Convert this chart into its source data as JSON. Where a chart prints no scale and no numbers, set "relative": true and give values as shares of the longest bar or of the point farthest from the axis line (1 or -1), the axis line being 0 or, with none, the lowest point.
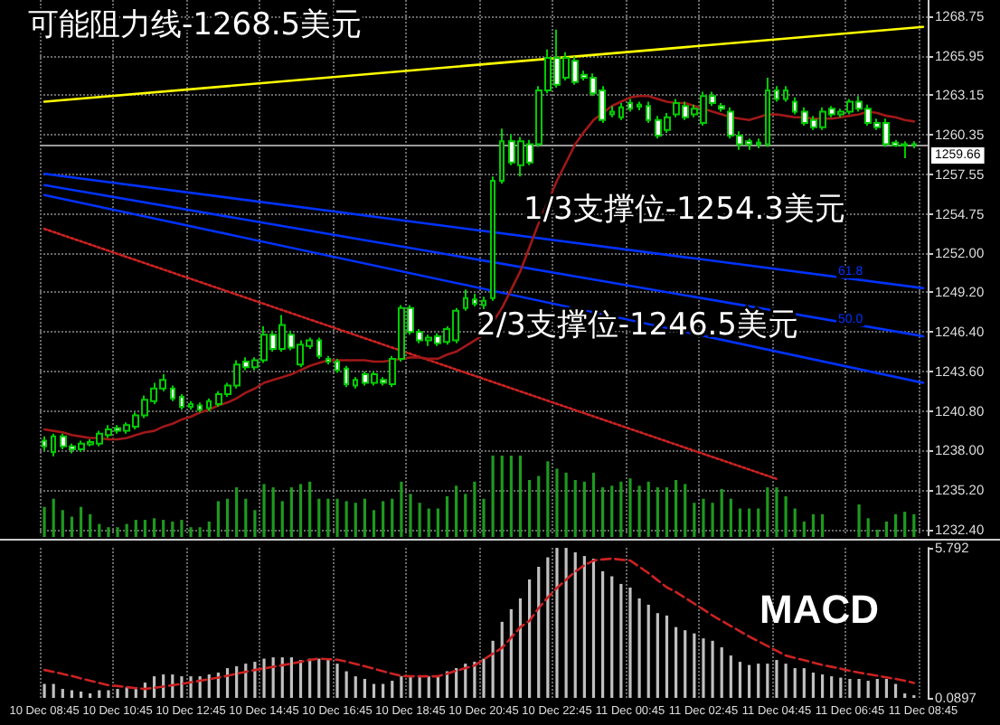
{
  "chart_data": [
    {
      "type": "candlestick",
      "color": "#00cc00",
      "marker": "none",
      "grid": true,
      "tick_labels": "y",
      "annotations": [
        "可能阻力线-1268.5美元",
        "1/3支撑位-1254.3美元",
        "2/3支撑位-1246.5美元"
      ],
      "categories": [
        "10 Dec 08:45",
        null,
        null,
        null,
        null,
        null,
        null,
        null,
        "10 Dec 10:45",
        null,
        null,
        null,
        null,
        null,
        null,
        null,
        "10 Dec 12:45",
        null,
        null,
        null,
        null,
        null,
        null,
        null,
        "10 Dec 14:45",
        null,
        null,
        null,
        null,
        null,
        null,
        null,
        "10 Dec 16:45",
        null,
        null,
        null,
        null,
        null,
        null,
        null,
        "10 Dec 18:45",
        null,
        null,
        null,
        null,
        null,
        null,
        null,
        "10 Dec 20:45",
        null,
        null,
        null,
        null,
        null,
        null,
        null,
        "10 Dec 22:45",
        null,
        null,
        null,
        null,
        null,
        null,
        null,
        "11 Dec 00:45",
        null,
        null,
        null,
        null,
        null,
        null,
        null,
        "11 Dec 02:45",
        null,
        null,
        null,
        null,
        null,
        null,
        null,
        "11 Dec 04:45",
        null,
        null,
        null,
        null,
        null,
        null,
        null,
        "11 Dec 06:45",
        null,
        null,
        null,
        null,
        null,
        null,
        null,
        "11 Dec 08:45"
      ],
      "ohlc": [
        [
          1238.7,
          1239.0,
          1238.0,
          1238.3
        ],
        [
          1237.9,
          1239.2,
          1237.6,
          1239.0
        ],
        [
          1239.0,
          1239.2,
          1238.1,
          1238.3
        ],
        [
          1238.3,
          1238.5,
          1237.8,
          1238.1
        ],
        [
          1238.1,
          1238.7,
          1237.9,
          1238.5
        ],
        [
          1238.45,
          1238.8,
          1238.3,
          1238.6
        ],
        [
          1238.5,
          1239.4,
          1238.3,
          1239.2
        ],
        [
          1239.1,
          1239.8,
          1238.9,
          1239.5
        ],
        [
          1239.6,
          1239.8,
          1239.2,
          1239.4
        ],
        [
          1239.4,
          1240.0,
          1239.2,
          1239.8
        ],
        [
          1239.7,
          1240.7,
          1239.5,
          1240.5
        ],
        [
          1240.5,
          1241.9,
          1240.3,
          1241.6
        ],
        [
          1241.5,
          1242.8,
          1241.3,
          1242.4
        ],
        [
          1242.4,
          1243.4,
          1242.2,
          1243.0
        ],
        [
          1242.4,
          1242.6,
          1241.5,
          1241.7
        ],
        [
          1241.8,
          1242.0,
          1240.9,
          1241.1
        ],
        [
          1241.1,
          1241.5,
          1240.9,
          1241.3
        ],
        [
          1241.2,
          1241.4,
          1240.7,
          1240.9
        ],
        [
          1241.0,
          1241.7,
          1240.8,
          1241.5
        ],
        [
          1241.3,
          1242.2,
          1241.1,
          1242.0
        ],
        [
          1242.0,
          1242.8,
          1241.8,
          1242.6
        ],
        [
          1242.6,
          1244.4,
          1242.4,
          1244.1
        ],
        [
          1244.3,
          1244.6,
          1243.7,
          1243.9
        ],
        [
          1243.9,
          1244.6,
          1243.7,
          1244.4
        ],
        [
          1244.4,
          1246.8,
          1244.2,
          1246.2
        ],
        [
          1246.2,
          1246.5,
          1245.0,
          1245.2
        ],
        [
          1245.2,
          1247.6,
          1245.0,
          1246.9
        ],
        [
          1246.2,
          1246.5,
          1245.1,
          1245.3
        ],
        [
          1244.1,
          1245.8,
          1243.9,
          1245.5
        ],
        [
          1245.4,
          1246.0,
          1245.2,
          1245.8
        ],
        [
          1245.8,
          1246.0,
          1244.5,
          1244.7
        ],
        [
          1244.5,
          1244.7,
          1244.1,
          1244.3
        ],
        [
          1244.3,
          1244.5,
          1243.5,
          1243.7
        ],
        [
          1243.8,
          1244.0,
          1242.5,
          1242.7
        ],
        [
          1242.6,
          1243.2,
          1242.4,
          1243.0
        ],
        [
          1243.4,
          1243.6,
          1242.6,
          1242.8
        ],
        [
          1242.8,
          1243.6,
          1242.6,
          1243.4
        ],
        [
          1243.0,
          1243.2,
          1242.6,
          1242.8
        ],
        [
          1242.7,
          1244.7,
          1242.5,
          1244.5
        ],
        [
          1244.5,
          1248.3,
          1244.3,
          1248.1
        ],
        [
          1248.1,
          1248.3,
          1246.2,
          1246.4
        ],
        [
          1246.4,
          1246.6,
          1245.6,
          1245.8
        ],
        [
          1245.8,
          1246.2,
          1245.4,
          1246.0
        ],
        [
          1246.1,
          1246.3,
          1245.4,
          1245.6
        ],
        [
          1245.7,
          1246.8,
          1245.5,
          1246.6
        ],
        [
          1245.8,
          1248.1,
          1245.6,
          1247.9
        ],
        [
          1248.1,
          1249.4,
          1247.9,
          1248.8
        ],
        [
          1248.7,
          1249.1,
          1248.2,
          1248.4
        ],
        [
          1248.3,
          1248.9,
          1247.9,
          1248.6
        ],
        [
          1248.8,
          1257.4,
          1248.6,
          1257.1
        ],
        [
          1257.1,
          1260.8,
          1256.9,
          1259.9
        ],
        [
          1259.9,
          1260.4,
          1258.2,
          1258.4
        ],
        [
          1258.2,
          1260.2,
          1257.4,
          1259.9
        ],
        [
          1259.7,
          1260.0,
          1258.2,
          1258.4
        ],
        [
          1259.7,
          1263.8,
          1259.5,
          1263.5
        ],
        [
          1263.5,
          1266.4,
          1263.3,
          1265.8
        ],
        [
          1265.8,
          1267.8,
          1263.7,
          1263.9
        ],
        [
          1264.4,
          1266.2,
          1264.2,
          1265.8
        ],
        [
          1265.6,
          1265.9,
          1263.9,
          1264.1
        ],
        [
          1264.6,
          1264.9,
          1264.2,
          1264.4
        ],
        [
          1264.4,
          1264.7,
          1263.1,
          1263.3
        ],
        [
          1263.5,
          1263.8,
          1261.2,
          1261.4
        ],
        [
          1261.8,
          1262.4,
          1261.6,
          1262.0
        ],
        [
          1261.6,
          1262.6,
          1261.4,
          1262.3
        ],
        [
          1262.6,
          1262.9,
          1262.0,
          1262.2
        ],
        [
          1262.35,
          1262.7,
          1262.1,
          1262.5
        ],
        [
          1262.4,
          1262.7,
          1261.2,
          1261.4
        ],
        [
          1261.4,
          1261.7,
          1260.1,
          1260.3
        ],
        [
          1260.7,
          1261.9,
          1260.5,
          1261.6
        ],
        [
          1261.8,
          1262.9,
          1261.6,
          1262.6
        ],
        [
          1262.4,
          1262.7,
          1261.4,
          1261.6
        ],
        [
          1261.8,
          1262.5,
          1261.6,
          1262.2
        ],
        [
          1261.2,
          1263.4,
          1261.0,
          1263.1
        ],
        [
          1263.1,
          1263.4,
          1262.4,
          1262.6
        ],
        [
          1262.4,
          1262.6,
          1262.0,
          1262.2
        ],
        [
          1262.0,
          1262.3,
          1260.1,
          1260.3
        ],
        [
          1260.3,
          1260.6,
          1259.3,
          1259.7
        ],
        [
          1259.9,
          1260.1,
          1259.3,
          1259.7
        ],
        [
          1259.7,
          1260.1,
          1259.4,
          1259.8
        ],
        [
          1259.7,
          1264.4,
          1259.5,
          1263.5
        ],
        [
          1263.5,
          1263.8,
          1262.7,
          1262.9
        ],
        [
          1262.9,
          1263.8,
          1262.7,
          1263.5
        ],
        [
          1262.7,
          1263.0,
          1261.8,
          1262.0
        ],
        [
          1262.0,
          1262.3,
          1261.0,
          1261.2
        ],
        [
          1261.4,
          1261.7,
          1260.7,
          1260.9
        ],
        [
          1260.9,
          1262.3,
          1260.7,
          1262.0
        ],
        [
          1262.2,
          1262.4,
          1261.6,
          1261.8
        ],
        [
          1261.8,
          1262.2,
          1261.6,
          1262.0
        ],
        [
          1262.0,
          1262.9,
          1261.8,
          1262.7
        ],
        [
          1262.7,
          1263.1,
          1262.0,
          1262.2
        ],
        [
          1262.2,
          1262.5,
          1261.0,
          1261.2
        ],
        [
          1261.2,
          1261.5,
          1260.7,
          1260.9
        ],
        [
          1261.2,
          1261.5,
          1259.5,
          1259.7
        ],
        [
          1259.8,
          1260.0,
          1259.5,
          1259.6
        ],
        [
          1259.6,
          1259.9,
          1258.7,
          1259.7
        ],
        [
          1259.7,
          1259.9,
          1259.4,
          1259.66
        ],
        null
      ],
      "series": [
        {
          "type": "line",
          "color": "#ffff00",
          "x": [
            "10 Dec 08:45",
            "11 Dec 08:45"
          ],
          "values": [
            1262.7,
            1268.0
          ]
        },
        {
          "type": "line",
          "name": "61.8",
          "color": "#0033ff",
          "x": [
            "10 Dec 08:45",
            "11 Dec 08:45"
          ],
          "values": [
            1257.6,
            1249.5
          ]
        },
        {
          "type": "line",
          "name": "50.0",
          "color": "#0033ff",
          "x": [
            "10 Dec 08:45",
            "11 Dec 08:45"
          ],
          "values": [
            1256.8,
            1246.1
          ]
        },
        {
          "type": "line",
          "color": "#0033ff",
          "x": [
            "10 Dec 08:45",
            "11 Dec 08:45"
          ],
          "values": [
            1256.1,
            1242.8
          ]
        },
        {
          "type": "line",
          "color": "#cc2222",
          "line_style": "dotted",
          "x": [
            "10 Dec 08:45",
            "11 Dec 04:45"
          ],
          "values": [
            1253.7,
            1236.0
          ]
        },
        {
          "type": "line",
          "color": "#a01818",
          "values": [
            1239.5,
            1239.4,
            1239.3,
            1239.1,
            1239.0,
            1238.9,
            1238.9,
            1238.8,
            1238.8,
            1238.9,
            1239.1,
            1239.3,
            1239.4,
            1239.7,
            1239.9,
            1240.2,
            1240.4,
            1240.7,
            1240.9,
            1241.2,
            1241.4,
            1241.7,
            1242.1,
            1242.4,
            1242.8,
            1243.0,
            1243.2,
            1243.4,
            1243.7,
            1244.0,
            1244.2,
            1244.4,
            1244.4,
            1244.4,
            1244.4,
            1244.4,
            1244.3,
            1244.3,
            1244.4,
            1244.5,
            1244.6,
            1244.6,
            1244.5,
            1244.5,
            1244.8,
            1245.0,
            1245.4,
            1245.8,
            1246.2,
            1247.1,
            1248.1,
            1249.4,
            1250.7,
            1252.4,
            1254.1,
            1255.6,
            1257.1,
            1258.4,
            1259.7,
            1260.6,
            1261.4,
            1261.9,
            1262.4,
            1262.7,
            1263.0,
            1263.1,
            1263.1,
            1262.9,
            1262.7,
            1262.6,
            1262.6,
            1262.4,
            1262.2,
            1262.0,
            1261.8,
            1261.6,
            1261.5,
            1261.4,
            1261.6,
            1261.8,
            1261.8,
            1261.7,
            1261.6,
            1261.6,
            1261.5,
            1261.5,
            1261.5,
            1261.6,
            1261.7,
            1261.8,
            1262.0,
            1261.9,
            1261.7,
            1261.6,
            1261.4,
            1261.3,
            null
          ]
        }
      ],
      "ylim": [
        1232.0,
        1269.9
      ],
      "yticks": [
        {
          "value": 1232.4,
          "label": "1232.40"
        },
        {
          "value": 1235.2,
          "label": "1235.20"
        },
        {
          "value": 1238,
          "label": "1238.00"
        },
        {
          "value": 1240.8,
          "label": "1240.80"
        },
        {
          "value": 1243.6,
          "label": "1243.60"
        },
        {
          "value": 1246.4,
          "label": "1246.40"
        },
        {
          "value": 1249.2,
          "label": "1249.20"
        },
        {
          "value": 1252,
          "label": "1252.00"
        },
        1254.75,
        {
          "value": 1257.55,
          "label": "1257.55"
        },
        {
          "value": 1260.35,
          "label": "1260.35"
        },
        {
          "value": 1263.15,
          "label": "1263.15"
        },
        {
          "value": 1265.95,
          "label": "1265.95"
        },
        1268.75
      ],
      "ref_lines": [
        {
          "axis": "y",
          "value": 1259.66,
          "label": "1259.66",
          "color": "#9a9a9a"
        }
      ]
    },
    {
      "type": "bar",
      "relative": true,
      "color": "#1e9a1e",
      "tick_labels": false,
      "categories": [
        "10 Dec 08:45",
        null,
        null,
        null,
        null,
        null,
        null,
        null,
        "10 Dec 10:45",
        null,
        null,
        null,
        null,
        null,
        null,
        null,
        "10 Dec 12:45",
        null,
        null,
        null,
        null,
        null,
        null,
        null,
        "10 Dec 14:45",
        null,
        null,
        null,
        null,
        null,
        null,
        null,
        "10 Dec 16:45",
        null,
        null,
        null,
        null,
        null,
        null,
        null,
        "10 Dec 18:45",
        null,
        null,
        null,
        null,
        null,
        null,
        null,
        "10 Dec 20:45",
        null,
        null,
        null,
        null,
        null,
        null,
        null,
        "10 Dec 22:45",
        null,
        null,
        null,
        null,
        null,
        null,
        null,
        "11 Dec 00:45",
        null,
        null,
        null,
        null,
        null,
        null,
        null,
        "11 Dec 02:45",
        null,
        null,
        null,
        null,
        null,
        null,
        null,
        "11 Dec 04:45",
        null,
        null,
        null,
        null,
        null,
        null,
        null,
        "11 Dec 06:45",
        null,
        null,
        null,
        null,
        null,
        null,
        null,
        "11 Dec 08:45"
      ],
      "values": [
        0.37,
        0.47,
        0.33,
        0.25,
        0.37,
        0.28,
        0.16,
        0.12,
        0.12,
        0.16,
        0.21,
        0.21,
        0.23,
        0.21,
        0.19,
        0.21,
        0.12,
        0.12,
        0.19,
        0.44,
        0.47,
        0.61,
        0.47,
        0.33,
        0.65,
        0.61,
        0.44,
        0.61,
        0.65,
        0.68,
        0.47,
        0.47,
        0.47,
        0.44,
        0.42,
        0.47,
        0.33,
        0.44,
        0.47,
        0.68,
        0.53,
        0.42,
        0.35,
        0.35,
        0.5,
        0.63,
        0.53,
        0.68,
        0.47,
        1,
        1,
        1,
        1,
        0.7,
        0.75,
        0.93,
        0.84,
        0.79,
        0.7,
        0.68,
        0.79,
        0.61,
        0.63,
        0.68,
        0.72,
        0.63,
        0.68,
        0.61,
        0.61,
        0.7,
        0.65,
        0.42,
        0.47,
        0.42,
        0.59,
        0.47,
        0.35,
        0.35,
        0.35,
        0.61,
        0.61,
        0.5,
        0.35,
        0.19,
        0.28,
        0.28,
        null,
        null,
        null,
        0.4,
        0.23,
        0.09,
        0.19,
        0.28,
        0.31,
        0.28,
        null
      ]
    },
    {
      "type": "bar",
      "title": "MACD",
      "grid": "x",
      "marker": "none",
      "categories": [
        "10 Dec 08:45",
        null,
        null,
        null,
        null,
        null,
        null,
        null,
        "10 Dec 10:45",
        null,
        null,
        null,
        null,
        null,
        null,
        null,
        "10 Dec 12:45",
        null,
        null,
        null,
        null,
        null,
        null,
        null,
        "10 Dec 14:45",
        null,
        null,
        null,
        null,
        null,
        null,
        null,
        "10 Dec 16:45",
        null,
        null,
        null,
        null,
        null,
        null,
        null,
        "10 Dec 18:45",
        null,
        null,
        null,
        null,
        null,
        null,
        null,
        "10 Dec 20:45",
        null,
        null,
        null,
        null,
        null,
        null,
        null,
        "10 Dec 22:45",
        null,
        null,
        null,
        null,
        null,
        null,
        null,
        "11 Dec 00:45",
        null,
        null,
        null,
        null,
        null,
        null,
        null,
        "11 Dec 02:45",
        null,
        null,
        null,
        null,
        null,
        null,
        null,
        "11 Dec 04:45",
        null,
        null,
        null,
        null,
        null,
        null,
        null,
        "11 Dec 06:45",
        null,
        null,
        null,
        null,
        null,
        null,
        null,
        "11 Dec 08:45"
      ],
      "series": [
        {
          "type": "bar",
          "color": "#c0c0c0",
          "values": [
            0.62,
            0.62,
            0.43,
            0.38,
            0.33,
            0.26,
            0.38,
            0.38,
            0.43,
            0.5,
            0.5,
            0.67,
            0.91,
            0.98,
            0.98,
            0.91,
            0.91,
            0.91,
            0.98,
            1.05,
            1.22,
            1.29,
            1.39,
            1.46,
            1.58,
            1.63,
            1.63,
            1.63,
            1.53,
            1.58,
            1.58,
            1.58,
            1.39,
            1.1,
            0.91,
            0.81,
            0.62,
            0.62,
            0.74,
            0.91,
            0.91,
            0.91,
            0.91,
            0.91,
            1.1,
            1.22,
            1.39,
            1.46,
            1.58,
            2.26,
            2.98,
            3.46,
            3.87,
            4.59,
            5.07,
            5.43,
            5.79,
            5.79,
            5.62,
            5.48,
            5.38,
            4.9,
            4.71,
            4.42,
            4.28,
            3.87,
            3.63,
            3.31,
            3.22,
            2.78,
            2.66,
            2.54,
            2.35,
            2.26,
            2.01,
            1.7,
            1.46,
            1.34,
            1.39,
            1.39,
            1.53,
            1.39,
            1.22,
            1.22,
            1.05,
            0.98,
            0.91,
            0.86,
            0.81,
            0.81,
            0.74,
            0.81,
            0.81,
            0.62,
            0.26,
            0.19,
            null
          ]
        },
        {
          "type": "line",
          "color": "#cc2222",
          "line_style": "dashed",
          "values": [
            1.15,
            1.08,
            1.0,
            0.92,
            0.83,
            0.74,
            0.66,
            0.57,
            0.54,
            0.5,
            0.46,
            0.43,
            0.47,
            0.52,
            0.57,
            0.62,
            0.68,
            0.74,
            0.8,
            0.86,
            0.93,
            1.01,
            1.08,
            1.15,
            1.21,
            1.27,
            1.33,
            1.39,
            1.46,
            1.53,
            1.58,
            1.56,
            1.54,
            1.47,
            1.38,
            1.29,
            1.2,
            1.1,
            1.01,
            0.92,
            0.91,
            0.91,
            0.91,
            0.91,
            1.01,
            1.12,
            1.22,
            1.32,
            1.55,
            1.77,
            1.99,
            2.38,
            2.78,
            3.02,
            3.5,
            3.91,
            4.27,
            4.58,
            4.89,
            5.13,
            5.31,
            5.35,
            5.38,
            5.34,
            5.31,
            5.07,
            4.83,
            4.56,
            4.29,
            4.11,
            3.89,
            3.67,
            3.45,
            3.22,
            3.02,
            2.82,
            2.62,
            2.42,
            2.24,
            2.06,
            1.88,
            1.7,
            1.61,
            1.52,
            1.43,
            1.34,
            1.27,
            1.2,
            1.12,
            1.05,
            0.99,
            0.93,
            0.87,
            0.81,
            0.74,
            0.66,
            null
          ]
        }
      ],
      "ylim": [
        0.0897,
        5.792
      ],
      "yticks": [
        0.0897,
        5.792
      ]
    }
  ]
}
